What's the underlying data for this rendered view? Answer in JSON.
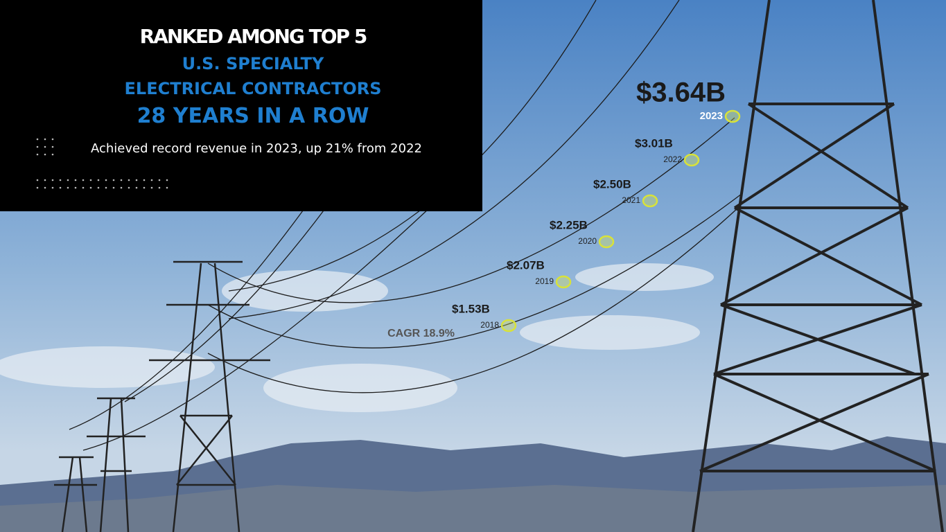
{
  "header": {
    "line1": "RANKED AMONG TOP 5",
    "line2": "U.S. SPECIALTY",
    "line3": "ELECTRICAL CONTRACTORS",
    "line4": "28 YEARS IN A ROW",
    "subtitle": "Achieved record revenue in 2023, up 21% from 2022"
  },
  "milestones": [
    {
      "value": "$1.53B",
      "year": "2018"
    },
    {
      "value": "$2.07B",
      "year": "2019"
    },
    {
      "value": "$2.25B",
      "year": "2020"
    },
    {
      "value": "$2.50B",
      "year": "2021"
    },
    {
      "value": "$3.01B",
      "year": "2022"
    },
    {
      "value": "$3.64B",
      "year": "2023"
    }
  ],
  "cagr": "CAGR 18.9%"
}
